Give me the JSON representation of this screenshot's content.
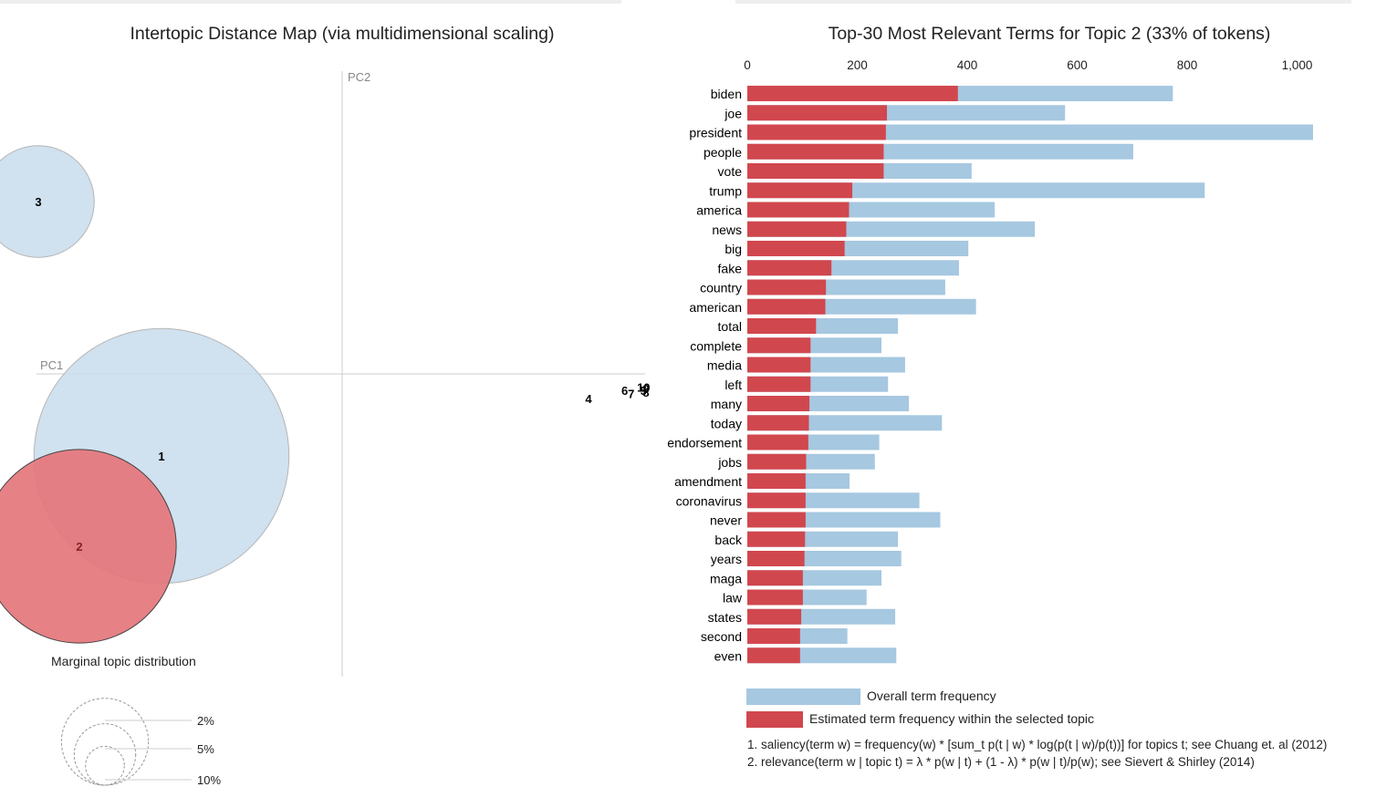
{
  "colors": {
    "overall": "#a6c8e0",
    "selected": "#d1474e",
    "topic_circle": "#c8dcec",
    "selected_circle": "#e4767b",
    "axis": "#cccccc",
    "label_gray": "#888888"
  },
  "chart_data": [
    {
      "type": "scatter",
      "title": "Intertopic Distance Map (via multidimensional scaling)",
      "xlabel": "PC1",
      "ylabel": "PC2",
      "selected_topic": "2",
      "topics": [
        {
          "id": "1",
          "x": -0.22,
          "y": -0.1,
          "size": 26
        },
        {
          "id": "2",
          "x": -0.32,
          "y": -0.21,
          "size": 15
        },
        {
          "id": "3",
          "x": -0.37,
          "y": 0.21,
          "size": 5
        },
        {
          "id": "4",
          "x": 0.3,
          "y": -0.03,
          "size": 0.2
        },
        {
          "id": "5",
          "x": 0.367,
          "y": -0.02,
          "size": 0.1
        },
        {
          "id": "6",
          "x": 0.344,
          "y": -0.02,
          "size": 0.1
        },
        {
          "id": "7",
          "x": 0.352,
          "y": -0.024,
          "size": 0.1
        },
        {
          "id": "8",
          "x": 0.37,
          "y": -0.022,
          "size": 0.1
        },
        {
          "id": "9",
          "x": 0.37,
          "y": -0.018,
          "size": 0.1
        },
        {
          "id": "10",
          "x": 0.367,
          "y": -0.016,
          "size": 0.1
        }
      ],
      "legend": {
        "title": "Marginal topic distribution",
        "items": [
          {
            "label": "2%",
            "value": 2
          },
          {
            "label": "5%",
            "value": 5
          },
          {
            "label": "10%",
            "value": 10
          }
        ]
      }
    },
    {
      "type": "bar",
      "title": "Top-30 Most Relevant Terms for Topic 2 (33% of tokens)",
      "xlim": [
        0,
        1000
      ],
      "ticks": [
        0,
        200,
        400,
        600,
        800,
        1000
      ],
      "tick_labels": [
        "0",
        "200",
        "400",
        "600",
        "800",
        "1,000"
      ],
      "categories": [
        "biden",
        "joe",
        "president",
        "people",
        "vote",
        "trump",
        "america",
        "news",
        "big",
        "fake",
        "country",
        "american",
        "total",
        "complete",
        "media",
        "left",
        "many",
        "today",
        "endorsement",
        "jobs",
        "amendment",
        "coronavirus",
        "never",
        "back",
        "years",
        "maga",
        "law",
        "states",
        "second",
        "even"
      ],
      "series": [
        {
          "name": "Overall term frequency",
          "values": [
            774,
            578,
            1029,
            702,
            408,
            832,
            450,
            523,
            402,
            385,
            360,
            416,
            274,
            244,
            287,
            256,
            294,
            354,
            240,
            232,
            186,
            313,
            351,
            274,
            280,
            244,
            217,
            269,
            182,
            271
          ]
        },
        {
          "name": "Estimated term frequency within the selected topic",
          "values": [
            383,
            254,
            252,
            248,
            248,
            191,
            185,
            180,
            177,
            153,
            143,
            142,
            125,
            115,
            115,
            115,
            113,
            112,
            111,
            107,
            106,
            106,
            106,
            105,
            104,
            101,
            101,
            98,
            96,
            96
          ]
        }
      ]
    }
  ],
  "footnotes": [
    "1. saliency(term w) = frequency(w) * [sum_t p(t | w) * log(p(t | w)/p(t))] for topics t; see Chuang et. al (2012)",
    "2. relevance(term w | topic t) = λ * p(w | t) + (1 - λ) * p(w | t)/p(w); see Sievert & Shirley (2014)"
  ]
}
